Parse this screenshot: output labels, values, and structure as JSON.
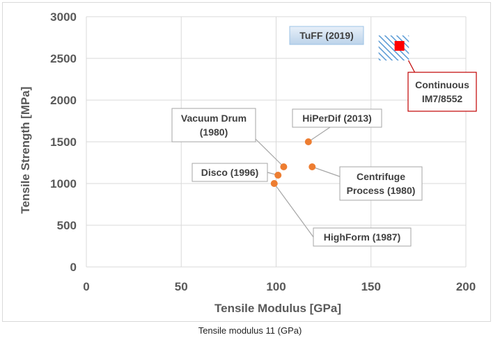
{
  "chart_data": {
    "type": "scatter",
    "xlabel": "Tensile Modulus [GPa]",
    "ylabel": "Tensile Strength [MPa]",
    "xlim": [
      0,
      200
    ],
    "ylim": [
      0,
      3000
    ],
    "xticks": [
      0,
      50,
      100,
      150,
      200
    ],
    "yticks": [
      0,
      500,
      1000,
      1500,
      2000,
      2500,
      3000
    ],
    "grid": true,
    "points": [
      {
        "label": "Vacuum Drum\n(1980)",
        "x": 104,
        "y": 1200
      },
      {
        "label": "HiPerDif (2013)",
        "x": 117,
        "y": 1500
      },
      {
        "label": "Disco (1996)",
        "x": 101,
        "y": 1100
      },
      {
        "label": "Centrifuge\nProcess (1980)",
        "x": 119,
        "y": 1200
      },
      {
        "label": "HighForm (1987)",
        "x": 99,
        "y": 1000
      }
    ],
    "tuff": {
      "label": "TuFF (2019)",
      "x_range": [
        154,
        170
      ],
      "y_range": [
        2475,
        2775
      ]
    },
    "reference": {
      "label": "Continuous\nIM7/8552",
      "x": 165,
      "y": 2650
    },
    "colors": {
      "points": "#ed7d31",
      "reference": "#ff0000",
      "tuff_fill": "#5b9bd5",
      "grid": "#d9d9d9"
    }
  },
  "caption": "Tensile modulus 11 (GPa)"
}
